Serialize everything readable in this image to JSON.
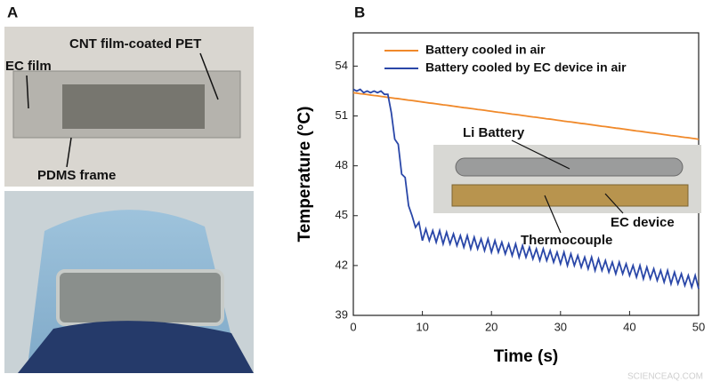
{
  "panels": [
    "A",
    "B"
  ],
  "panel_a": {
    "annotations": [
      "CNT film-coated PET",
      "EC film",
      "PDMS frame"
    ]
  },
  "watermark": "SCIENCEAQ.COM",
  "chart_data": {
    "type": "line",
    "x_label": "Time (s)",
    "y_label": "Temperature (°C)",
    "xlim": [
      0,
      50
    ],
    "xticks": [
      0,
      10,
      20,
      30,
      40,
      50
    ],
    "ylim": [
      39,
      56
    ],
    "yticks": [
      39,
      42,
      45,
      48,
      51,
      54
    ],
    "legend": "upper left",
    "annotations": [
      "Li Battery",
      "EC device",
      "Thermocouple"
    ],
    "x": [
      0,
      0.5,
      1,
      1.5,
      2,
      2.5,
      3,
      3.5,
      4,
      4.5,
      5,
      5.5,
      6,
      6.5,
      7,
      7.5,
      8,
      8.5,
      9,
      9.5,
      10,
      10.5,
      11,
      11.5,
      12,
      12.5,
      13,
      13.5,
      14,
      14.5,
      15,
      15.5,
      16,
      16.5,
      17,
      17.5,
      18,
      18.5,
      19,
      19.5,
      20,
      20.5,
      21,
      21.5,
      22,
      22.5,
      23,
      23.5,
      24,
      24.5,
      25,
      25.5,
      26,
      26.5,
      27,
      27.5,
      28,
      28.5,
      29,
      29.5,
      30,
      30.5,
      31,
      31.5,
      32,
      32.5,
      33,
      33.5,
      34,
      34.5,
      35,
      35.5,
      36,
      36.5,
      37,
      37.5,
      38,
      38.5,
      39,
      39.5,
      40,
      40.5,
      41,
      41.5,
      42,
      42.5,
      43,
      43.5,
      44,
      44.5,
      45,
      45.5,
      46,
      46.5,
      47,
      47.5,
      48,
      48.5,
      49,
      49.5,
      50
    ],
    "series": [
      {
        "name": "Battery cooled in air",
        "color": "#f0892a",
        "values": [
          52.4,
          52.37,
          52.34,
          52.32,
          52.29,
          52.26,
          52.23,
          52.21,
          52.18,
          52.15,
          52.12,
          52.09,
          52.06,
          52.04,
          52.01,
          51.98,
          51.95,
          51.93,
          51.9,
          51.87,
          51.84,
          51.81,
          51.78,
          51.76,
          51.73,
          51.7,
          51.67,
          51.65,
          51.62,
          51.59,
          51.56,
          51.53,
          51.5,
          51.48,
          51.45,
          51.42,
          51.39,
          51.37,
          51.34,
          51.31,
          51.28,
          51.25,
          51.22,
          51.2,
          51.17,
          51.14,
          51.11,
          51.09,
          51.06,
          51.03,
          51.0,
          50.97,
          50.94,
          50.92,
          50.89,
          50.86,
          50.83,
          50.81,
          50.78,
          50.75,
          50.72,
          50.69,
          50.66,
          50.64,
          50.61,
          50.58,
          50.55,
          50.53,
          50.5,
          50.47,
          50.44,
          50.41,
          50.38,
          50.36,
          50.33,
          50.3,
          50.27,
          50.25,
          50.22,
          50.19,
          50.16,
          50.13,
          50.1,
          50.08,
          50.05,
          50.02,
          49.99,
          49.97,
          49.94,
          49.91,
          49.88,
          49.85,
          49.82,
          49.8,
          49.77,
          49.74,
          49.71,
          49.69,
          49.66,
          49.63,
          49.6
        ]
      },
      {
        "name": "Battery cooled by EC device in air",
        "color": "#2a47a8",
        "values": [
          52.6,
          52.5,
          52.6,
          52.4,
          52.5,
          52.4,
          52.5,
          52.4,
          52.5,
          52.3,
          52.3,
          51.2,
          49.6,
          49.3,
          47.5,
          47.3,
          45.6,
          45.0,
          44.3,
          44.6,
          43.5,
          44.2,
          43.5,
          44.1,
          43.4,
          44.1,
          43.3,
          44.0,
          43.3,
          43.9,
          43.2,
          43.8,
          43.1,
          43.8,
          43.0,
          43.7,
          43.0,
          43.6,
          42.9,
          43.6,
          42.8,
          43.5,
          42.8,
          43.4,
          42.7,
          43.3,
          42.6,
          43.3,
          42.5,
          43.2,
          42.5,
          43.1,
          42.4,
          43.0,
          42.3,
          43.0,
          42.3,
          42.9,
          42.2,
          42.8,
          42.1,
          42.8,
          42.0,
          42.7,
          42.0,
          42.6,
          41.9,
          42.5,
          41.8,
          42.5,
          41.7,
          42.4,
          41.7,
          42.3,
          41.6,
          42.2,
          41.5,
          42.2,
          41.5,
          42.1,
          41.4,
          42.0,
          41.3,
          42.0,
          41.2,
          41.9,
          41.2,
          41.8,
          41.1,
          41.7,
          41.0,
          41.7,
          40.9,
          41.6,
          40.9,
          41.5,
          40.8,
          41.4,
          40.7,
          41.4,
          40.6
        ]
      }
    ]
  }
}
